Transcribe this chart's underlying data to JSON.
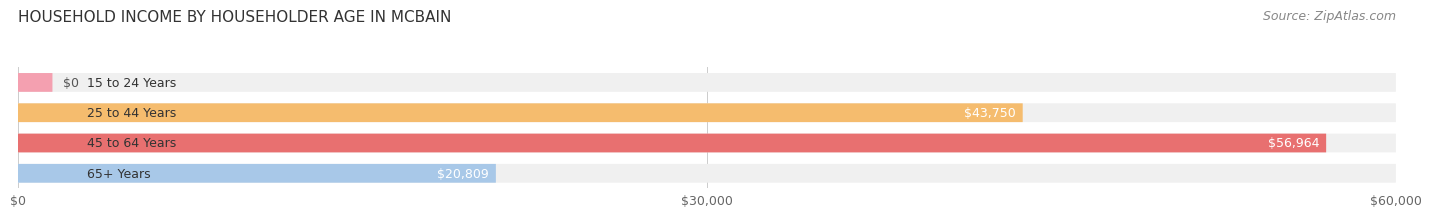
{
  "title": "HOUSEHOLD INCOME BY HOUSEHOLDER AGE IN MCBAIN",
  "source": "Source: ZipAtlas.com",
  "categories": [
    "15 to 24 Years",
    "25 to 44 Years",
    "45 to 64 Years",
    "65+ Years"
  ],
  "values": [
    0,
    43750,
    56964,
    20809
  ],
  "bar_colors": [
    "#f4a0b0",
    "#f5bc6e",
    "#e87070",
    "#a8c8e8"
  ],
  "bar_bg_color": "#f0f0f0",
  "background_color": "#ffffff",
  "xlim": [
    0,
    60000
  ],
  "xticks": [
    0,
    30000,
    60000
  ],
  "xtick_labels": [
    "$0",
    "$30,000",
    "$60,000"
  ],
  "value_labels": [
    "$0",
    "$43,750",
    "$56,964",
    "$20,809"
  ],
  "title_fontsize": 11,
  "source_fontsize": 9,
  "label_fontsize": 9,
  "tick_fontsize": 9
}
